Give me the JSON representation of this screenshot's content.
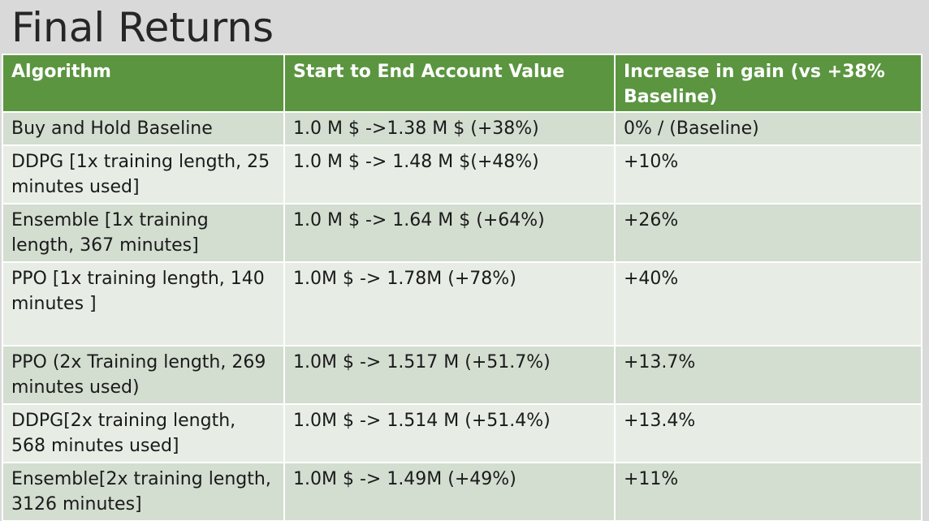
{
  "slide": {
    "title": "Final Returns"
  },
  "table": {
    "headers": [
      "Algorithm",
      "Start to End Account Value",
      "Increase in gain (vs +38% Baseline)"
    ],
    "rows": [
      [
        "Buy and Hold Baseline",
        "1.0 M $ ->1.38 M $ (+38%)",
        "0% / (Baseline)"
      ],
      [
        "DDPG [1x training length, 25 minutes used]",
        "1.0 M $ -> 1.48 M $(+48%)",
        "+10%"
      ],
      [
        "Ensemble [1x training length, 367 minutes]",
        "1.0 M $ -> 1.64 M $ (+64%)",
        "+26%"
      ],
      [
        "PPO [1x training length, 140 minutes ]",
        "1.0M $ -> 1.78M (+78%)",
        "+40%"
      ],
      [
        "PPO (2x Training length, 269 minutes used)",
        "1.0M $ -> 1.517 M (+51.7%)",
        "+13.7%"
      ],
      [
        "DDPG[2x training length, 568 minutes used]",
        "1.0M $ -> 1.514 M (+51.4%)",
        "+13.4%"
      ],
      [
        "Ensemble[2x training length, 3126 minutes]",
        "1.0M $ -> 1.49M (+49%)",
        "+11%"
      ]
    ]
  },
  "colors": {
    "header_bg": "#5b9540",
    "row_dark": "#d3ddd0",
    "row_light": "#e7ede5",
    "slide_bg": "#d9d9d9"
  }
}
